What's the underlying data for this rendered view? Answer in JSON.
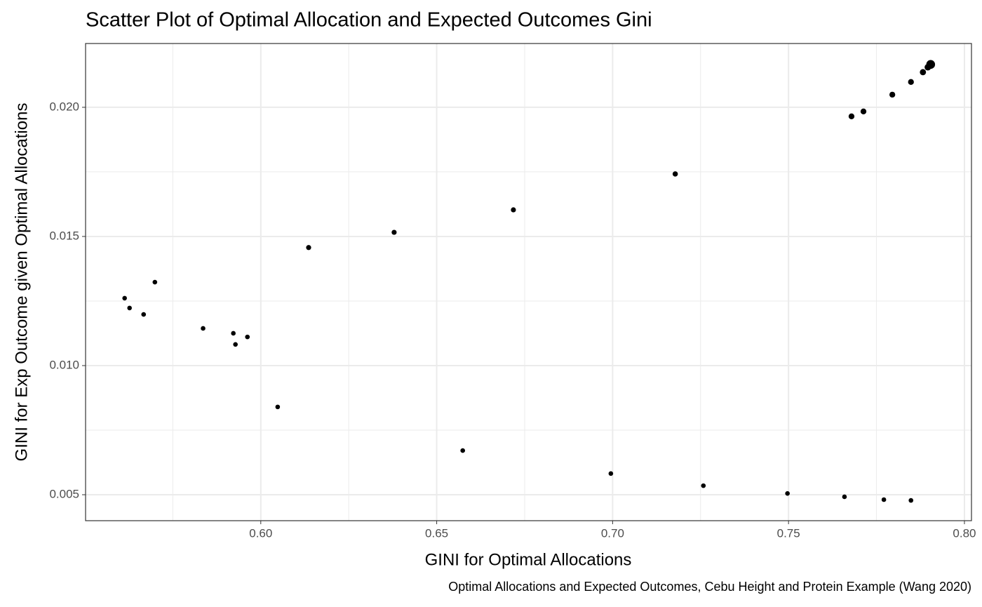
{
  "chart_data": {
    "type": "scatter",
    "title": "Scatter Plot of Optimal Allocation and Expected Outcomes Gini",
    "x_label": "GINI for Optimal Allocations",
    "y_label": "GINI for Exp Outcome given Optimal Allocations",
    "caption": "Optimal Allocations and Expected Outcomes, Cebu Height and Protein Example (Wang 2020)",
    "color": "#000000",
    "grid": true,
    "x": [
      0.5613,
      0.5627,
      0.5667,
      0.5699,
      0.5836,
      0.5922,
      0.5928,
      0.5962,
      0.6048,
      0.6136,
      0.6379,
      0.6574,
      0.6718,
      0.6995,
      0.7178,
      0.7258,
      0.7497,
      0.7659,
      0.7679,
      0.7713,
      0.7771,
      0.7795,
      0.7848,
      0.7848,
      0.7882,
      0.7896,
      0.7904
    ],
    "values": [
      0.01261,
      0.01223,
      0.01198,
      0.01323,
      0.01144,
      0.01125,
      0.01082,
      0.01111,
      0.0084,
      0.01457,
      0.01516,
      0.00671,
      0.01603,
      0.00582,
      0.01742,
      0.00535,
      0.00505,
      0.00492,
      0.01965,
      0.01984,
      0.00481,
      0.02049,
      0.00478,
      0.02098,
      0.02136,
      0.02155,
      0.02166
    ],
    "sizes": [
      1,
      1,
      1,
      1,
      1,
      1,
      1,
      1,
      1,
      1.2,
      1.2,
      1,
      1.2,
      1,
      1.3,
      1,
      1,
      1,
      1.6,
      1.6,
      1,
      1.6,
      1,
      1.6,
      1.8,
      2,
      3.6
    ],
    "xlim": [
      0.5502,
      0.802
    ],
    "ylim": [
      0.003995,
      0.02247
    ],
    "xticks": [
      {
        "value": 0.6,
        "label": "0.60"
      },
      0.65,
      {
        "value": 0.7,
        "label": "0.70"
      },
      0.75,
      {
        "value": 0.8,
        "label": "0.80"
      }
    ],
    "yticks": [
      {
        "value": 0.005,
        "label": "0.005"
      },
      {
        "value": 0.01,
        "label": "0.010"
      },
      0.015,
      {
        "value": 0.02,
        "label": "0.020"
      }
    ]
  }
}
